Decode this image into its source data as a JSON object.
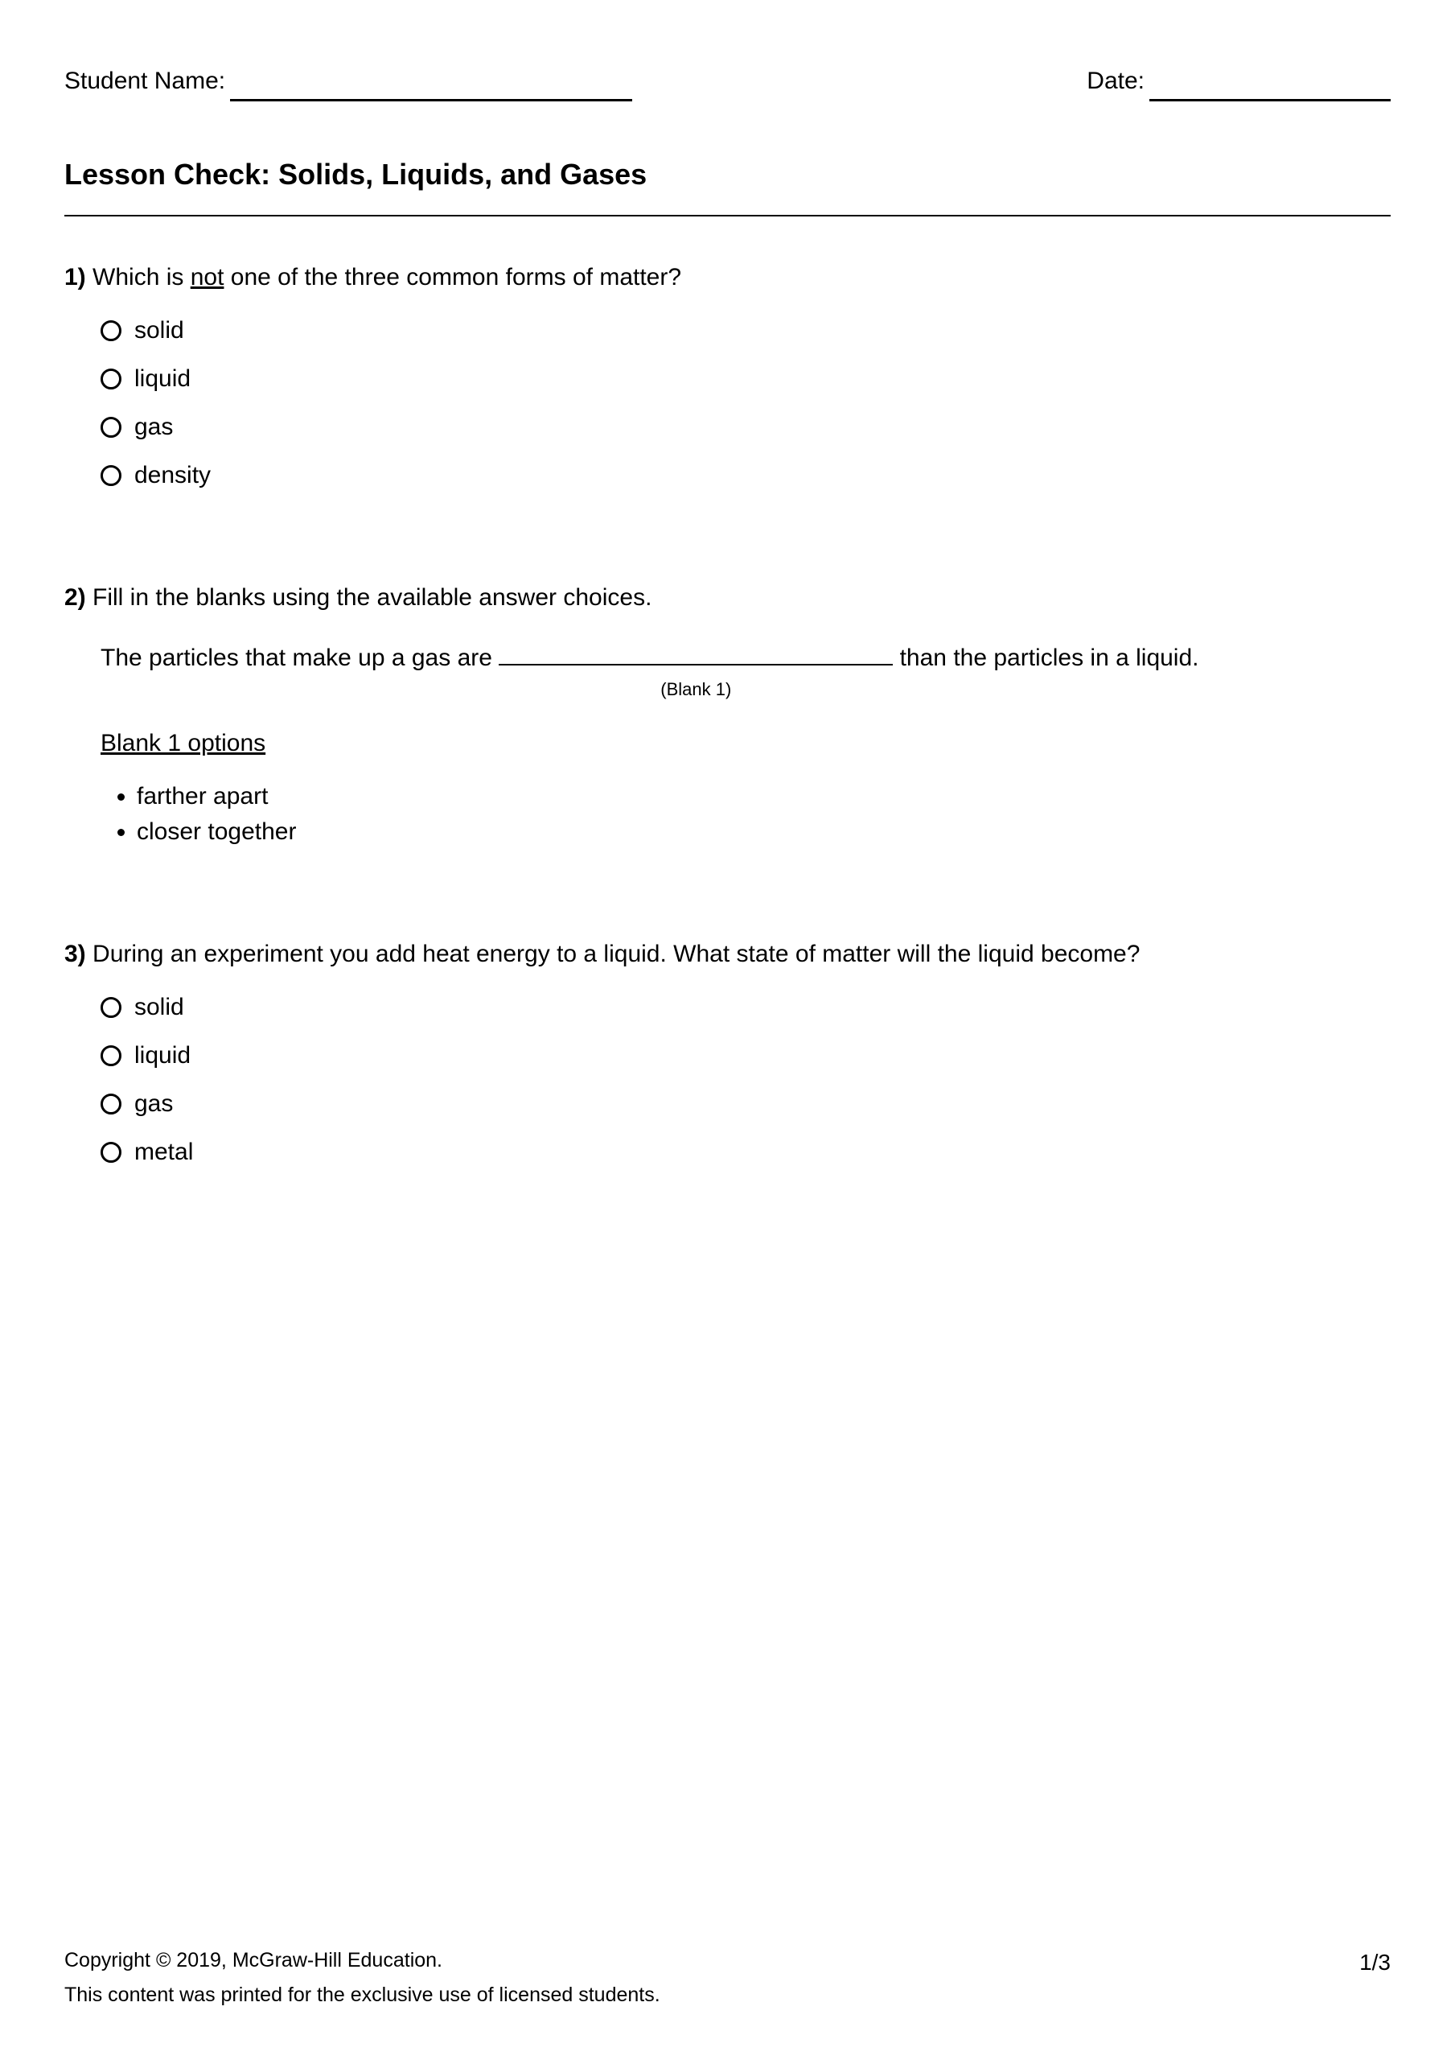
{
  "header": {
    "student_name_label": "Student Name:",
    "date_label": "Date:"
  },
  "title": "Lesson Check: Solids, Liquids, and Gases",
  "q1": {
    "number": "1)",
    "text_pre": "Which is ",
    "text_underline": "not",
    "text_post": " one of the three common forms of matter?",
    "options": [
      "solid",
      "liquid",
      "gas",
      "density"
    ]
  },
  "q2": {
    "number": "2)",
    "text": "Fill in the blanks using the available answer choices.",
    "sentence_pre": "The particles that make up a gas are ",
    "blank_label": "(Blank 1)",
    "sentence_post": " than the particles in a liquid.",
    "options_title": "Blank 1 options",
    "options": [
      "farther apart",
      "closer together"
    ]
  },
  "q3": {
    "number": "3)",
    "text": "During an experiment you add heat energy to a liquid. What state of matter will the liquid become?",
    "options": [
      "solid",
      "liquid",
      "gas",
      "metal"
    ]
  },
  "footer": {
    "copyright": "Copyright © 2019, McGraw-Hill Education.",
    "notice": "This content was printed for the exclusive use of licensed students.",
    "page": "1/3"
  }
}
